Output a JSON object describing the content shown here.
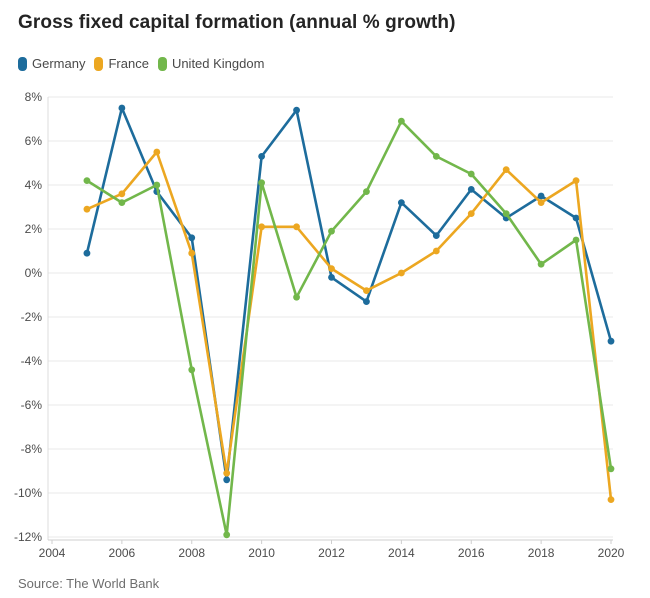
{
  "title": "Gross fixed capital formation (annual % growth)",
  "source": "Source: The World Bank",
  "chart_data": {
    "type": "line",
    "title": "Gross fixed capital formation (annual % growth)",
    "xlabel": "",
    "ylabel": "",
    "xlim": [
      2004,
      2020
    ],
    "ylim": [
      -12,
      8
    ],
    "y_tick_step": 2,
    "y_tick_suffix": "%",
    "grid": "horizontal",
    "legend_position": "top-left",
    "x_ticks": [
      2004,
      2006,
      2008,
      2010,
      2012,
      2014,
      2016,
      2018,
      2020
    ],
    "x": [
      2005,
      2006,
      2007,
      2008,
      2009,
      2010,
      2011,
      2012,
      2013,
      2014,
      2015,
      2016,
      2017,
      2018,
      2019,
      2020
    ],
    "series": [
      {
        "name": "Germany",
        "color": "#1d6c9c",
        "values": [
          0.9,
          7.5,
          3.7,
          1.6,
          -9.4,
          5.3,
          7.4,
          -0.2,
          -1.3,
          3.2,
          1.7,
          3.8,
          2.5,
          3.5,
          2.5,
          -3.1
        ]
      },
      {
        "name": "France",
        "color": "#eca721",
        "values": [
          2.9,
          3.6,
          5.5,
          0.9,
          -9.1,
          2.1,
          2.1,
          0.2,
          -0.8,
          0.0,
          1.0,
          2.7,
          4.7,
          3.2,
          4.2,
          -10.3
        ]
      },
      {
        "name": "United Kingdom",
        "color": "#72b74b",
        "values": [
          4.2,
          3.2,
          4.0,
          -4.4,
          -11.9,
          4.1,
          -1.1,
          1.9,
          3.7,
          6.9,
          5.3,
          4.5,
          2.7,
          0.4,
          1.5,
          -8.9
        ]
      }
    ]
  }
}
